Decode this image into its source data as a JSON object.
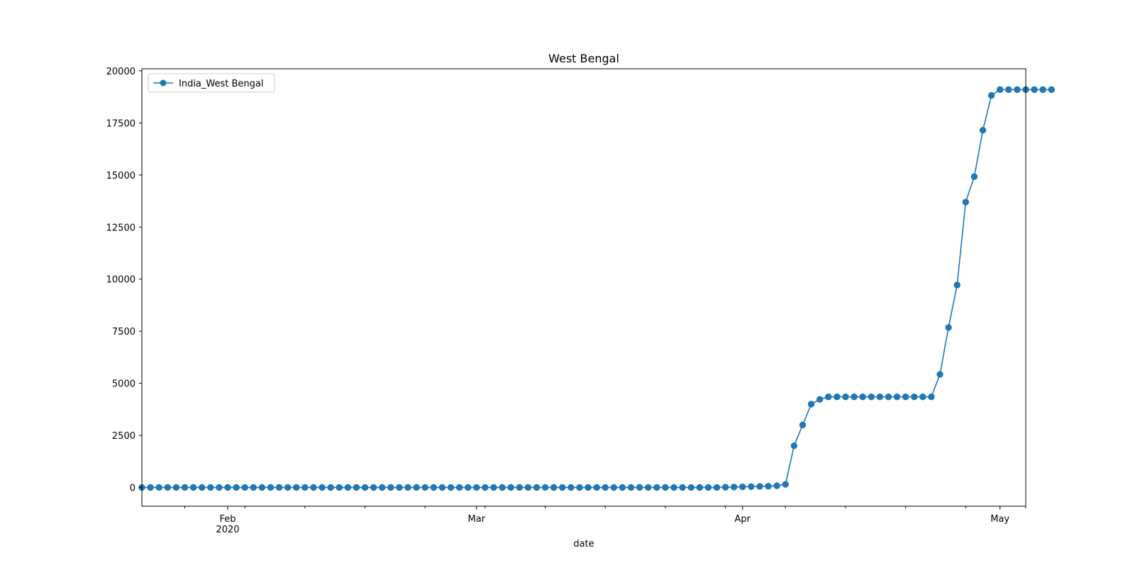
{
  "chart_data": {
    "type": "line",
    "title": "West Bengal",
    "xlabel": "date",
    "ylabel": "",
    "x_start": "2020-01-22",
    "x_end": "2020-05-04",
    "xlim": [
      "2020-01-22",
      "2020-05-04"
    ],
    "ylim": [
      -900,
      20100
    ],
    "yticks": [
      0,
      2500,
      5000,
      7500,
      10000,
      12500,
      15000,
      17500,
      20000
    ],
    "ytick_labels": [
      "0",
      "2500",
      "5000",
      "7500",
      "10000",
      "12500",
      "15000",
      "17500",
      "20000"
    ],
    "xticks_major": [
      {
        "date": "2020-02-01",
        "label": "Feb",
        "sublabel": "2020"
      },
      {
        "date": "2020-03-01",
        "label": "Mar",
        "sublabel": ""
      },
      {
        "date": "2020-04-01",
        "label": "Apr",
        "sublabel": ""
      },
      {
        "date": "2020-05-01",
        "label": "May",
        "sublabel": ""
      }
    ],
    "legend": {
      "location": "upper left",
      "entries": [
        "India_West Bengal"
      ]
    },
    "grid": false,
    "series": [
      {
        "name": "India_West Bengal",
        "color": "#1f77b4",
        "marker": "circle",
        "values": [
          0,
          0,
          0,
          0,
          0,
          0,
          0,
          0,
          0,
          0,
          0,
          0,
          0,
          0,
          0,
          0,
          0,
          0,
          0,
          0,
          0,
          0,
          0,
          0,
          0,
          0,
          0,
          0,
          0,
          0,
          0,
          0,
          0,
          0,
          0,
          0,
          0,
          0,
          0,
          0,
          0,
          0,
          0,
          0,
          0,
          0,
          0,
          0,
          0,
          0,
          0,
          0,
          0,
          0,
          0,
          0,
          0,
          0,
          0,
          0,
          0,
          0,
          0,
          0,
          0,
          0,
          0,
          0,
          10,
          20,
          30,
          40,
          50,
          60,
          80,
          150,
          2000,
          3000,
          4000,
          4230,
          4350,
          4350,
          4350,
          4350,
          4350,
          4350,
          4350,
          4350,
          4350,
          4350,
          4350,
          4350,
          4350,
          5430,
          7680,
          9720,
          13700,
          14920,
          17150,
          18820,
          19100,
          19100,
          19100,
          19100,
          19100,
          19100,
          19100
        ]
      }
    ]
  }
}
